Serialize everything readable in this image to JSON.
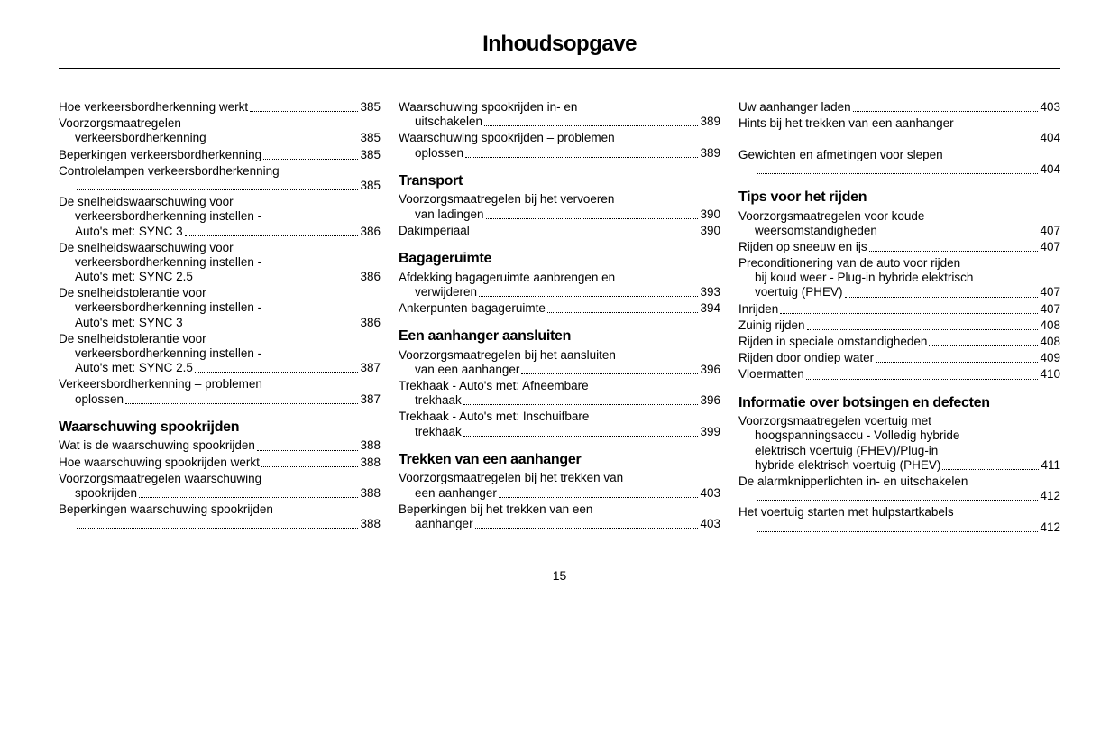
{
  "title": "Inhoudsopgave",
  "pageNumber": "15",
  "col1": {
    "entries1": [
      {
        "label": "Hoe verkeersbordherkenning werkt",
        "page": "385"
      },
      {
        "label": "Voorzorgsmaatregelen",
        "cont": "verkeersbordherkenning",
        "page": "385"
      },
      {
        "label": "Beperkingen verkeersbordherkenning",
        "page": "385"
      },
      {
        "label": "Controlelampen verkeersbordherkenning",
        "cont": "",
        "page": "385"
      },
      {
        "label": "De snelheidswaarschuwing voor",
        "cont": "verkeersbordherkenning instellen -",
        "cont2": "Auto's met: SYNC 3",
        "page": "386"
      },
      {
        "label": "De snelheidswaarschuwing voor",
        "cont": "verkeersbordherkenning instellen -",
        "cont2": "Auto's met: SYNC 2.5",
        "page": "386"
      },
      {
        "label": "De snelheidstolerantie voor",
        "cont": "verkeersbordherkenning instellen -",
        "cont2": "Auto's met: SYNC 3",
        "page": "386"
      },
      {
        "label": "De snelheidstolerantie voor",
        "cont": "verkeersbordherkenning instellen -",
        "cont2": "Auto's met: SYNC 2.5",
        "page": "387"
      },
      {
        "label": "Verkeersbordherkenning – problemen",
        "cont": "oplossen",
        "page": "387"
      }
    ],
    "heading1": "Waarschuwing spookrijden",
    "entries2": [
      {
        "label": "Wat is de waarschuwing spookrijden",
        "page": "388"
      },
      {
        "label": "Hoe waarschuwing spookrijden werkt",
        "page": "388"
      },
      {
        "label": "Voorzorgsmaatregelen waarschuwing",
        "cont": "spookrijden",
        "page": "388"
      },
      {
        "label": "Beperkingen waarschuwing spookrijden",
        "cont": "",
        "page": "388"
      }
    ]
  },
  "col2": {
    "entries1": [
      {
        "label": "Waarschuwing spookrijden in- en",
        "cont": "uitschakelen",
        "page": "389"
      },
      {
        "label": "Waarschuwing spookrijden – problemen",
        "cont": "oplossen",
        "page": "389"
      }
    ],
    "heading1": "Transport",
    "entries2": [
      {
        "label": "Voorzorgsmaatregelen bij het vervoeren",
        "cont": "van ladingen",
        "page": "390"
      },
      {
        "label": "Dakimperiaal",
        "page": "390"
      }
    ],
    "heading2": "Bagageruimte",
    "entries3": [
      {
        "label": "Afdekking bagageruimte aanbrengen en",
        "cont": "verwijderen",
        "page": "393"
      },
      {
        "label": "Ankerpunten bagageruimte",
        "page": "394"
      }
    ],
    "heading3": "Een aanhanger aansluiten",
    "entries4": [
      {
        "label": "Voorzorgsmaatregelen bij het aansluiten",
        "cont": "van een aanhanger",
        "page": "396"
      },
      {
        "label": "Trekhaak - Auto's met: Afneembare",
        "cont": "trekhaak",
        "page": "396"
      },
      {
        "label": "Trekhaak - Auto's met: Inschuifbare",
        "cont": "trekhaak",
        "page": "399"
      }
    ],
    "heading4": "Trekken van een aanhanger",
    "entries5": [
      {
        "label": "Voorzorgsmaatregelen bij het trekken van",
        "cont": "een aanhanger",
        "page": "403"
      },
      {
        "label": "Beperkingen bij het trekken van een",
        "cont": "aanhanger",
        "page": "403"
      }
    ]
  },
  "col3": {
    "entries1": [
      {
        "label": "Uw aanhanger laden",
        "page": "403"
      },
      {
        "label": "Hints bij het trekken van een aanhanger",
        "cont": "",
        "page": "404"
      },
      {
        "label": "Gewichten en afmetingen voor slepen",
        "cont": "",
        "page": "404"
      }
    ],
    "heading1": "Tips voor het rijden",
    "entries2": [
      {
        "label": "Voorzorgsmaatregelen voor koude",
        "cont": "weersomstandigheden",
        "page": "407"
      },
      {
        "label": "Rijden op sneeuw en ijs",
        "page": "407"
      },
      {
        "label": "Preconditionering van de auto voor rijden",
        "cont": "bij koud weer - Plug-in hybride elektrisch",
        "cont2": "voertuig (PHEV)",
        "page": "407"
      },
      {
        "label": "Inrijden",
        "page": "407"
      },
      {
        "label": "Zuinig rijden",
        "page": "408"
      },
      {
        "label": "Rijden in speciale omstandigheden",
        "page": "408"
      },
      {
        "label": "Rijden door ondiep water",
        "page": "409"
      },
      {
        "label": "Vloermatten",
        "page": "410"
      }
    ],
    "heading2": "Informatie over botsingen en defecten",
    "entries3": [
      {
        "label": "Voorzorgsmaatregelen voertuig met",
        "cont": "hoogspanningsaccu - Volledig hybride",
        "cont2": "elektrisch voertuig (FHEV)/Plug-in",
        "cont3": "hybride elektrisch voertuig (PHEV)",
        "page": "411"
      },
      {
        "label": "De alarmknipperlichten in- en uitschakelen",
        "cont": "",
        "page": "412"
      },
      {
        "label": "Het voertuig starten met hulpstartkabels",
        "cont": "",
        "page": "412"
      }
    ]
  }
}
